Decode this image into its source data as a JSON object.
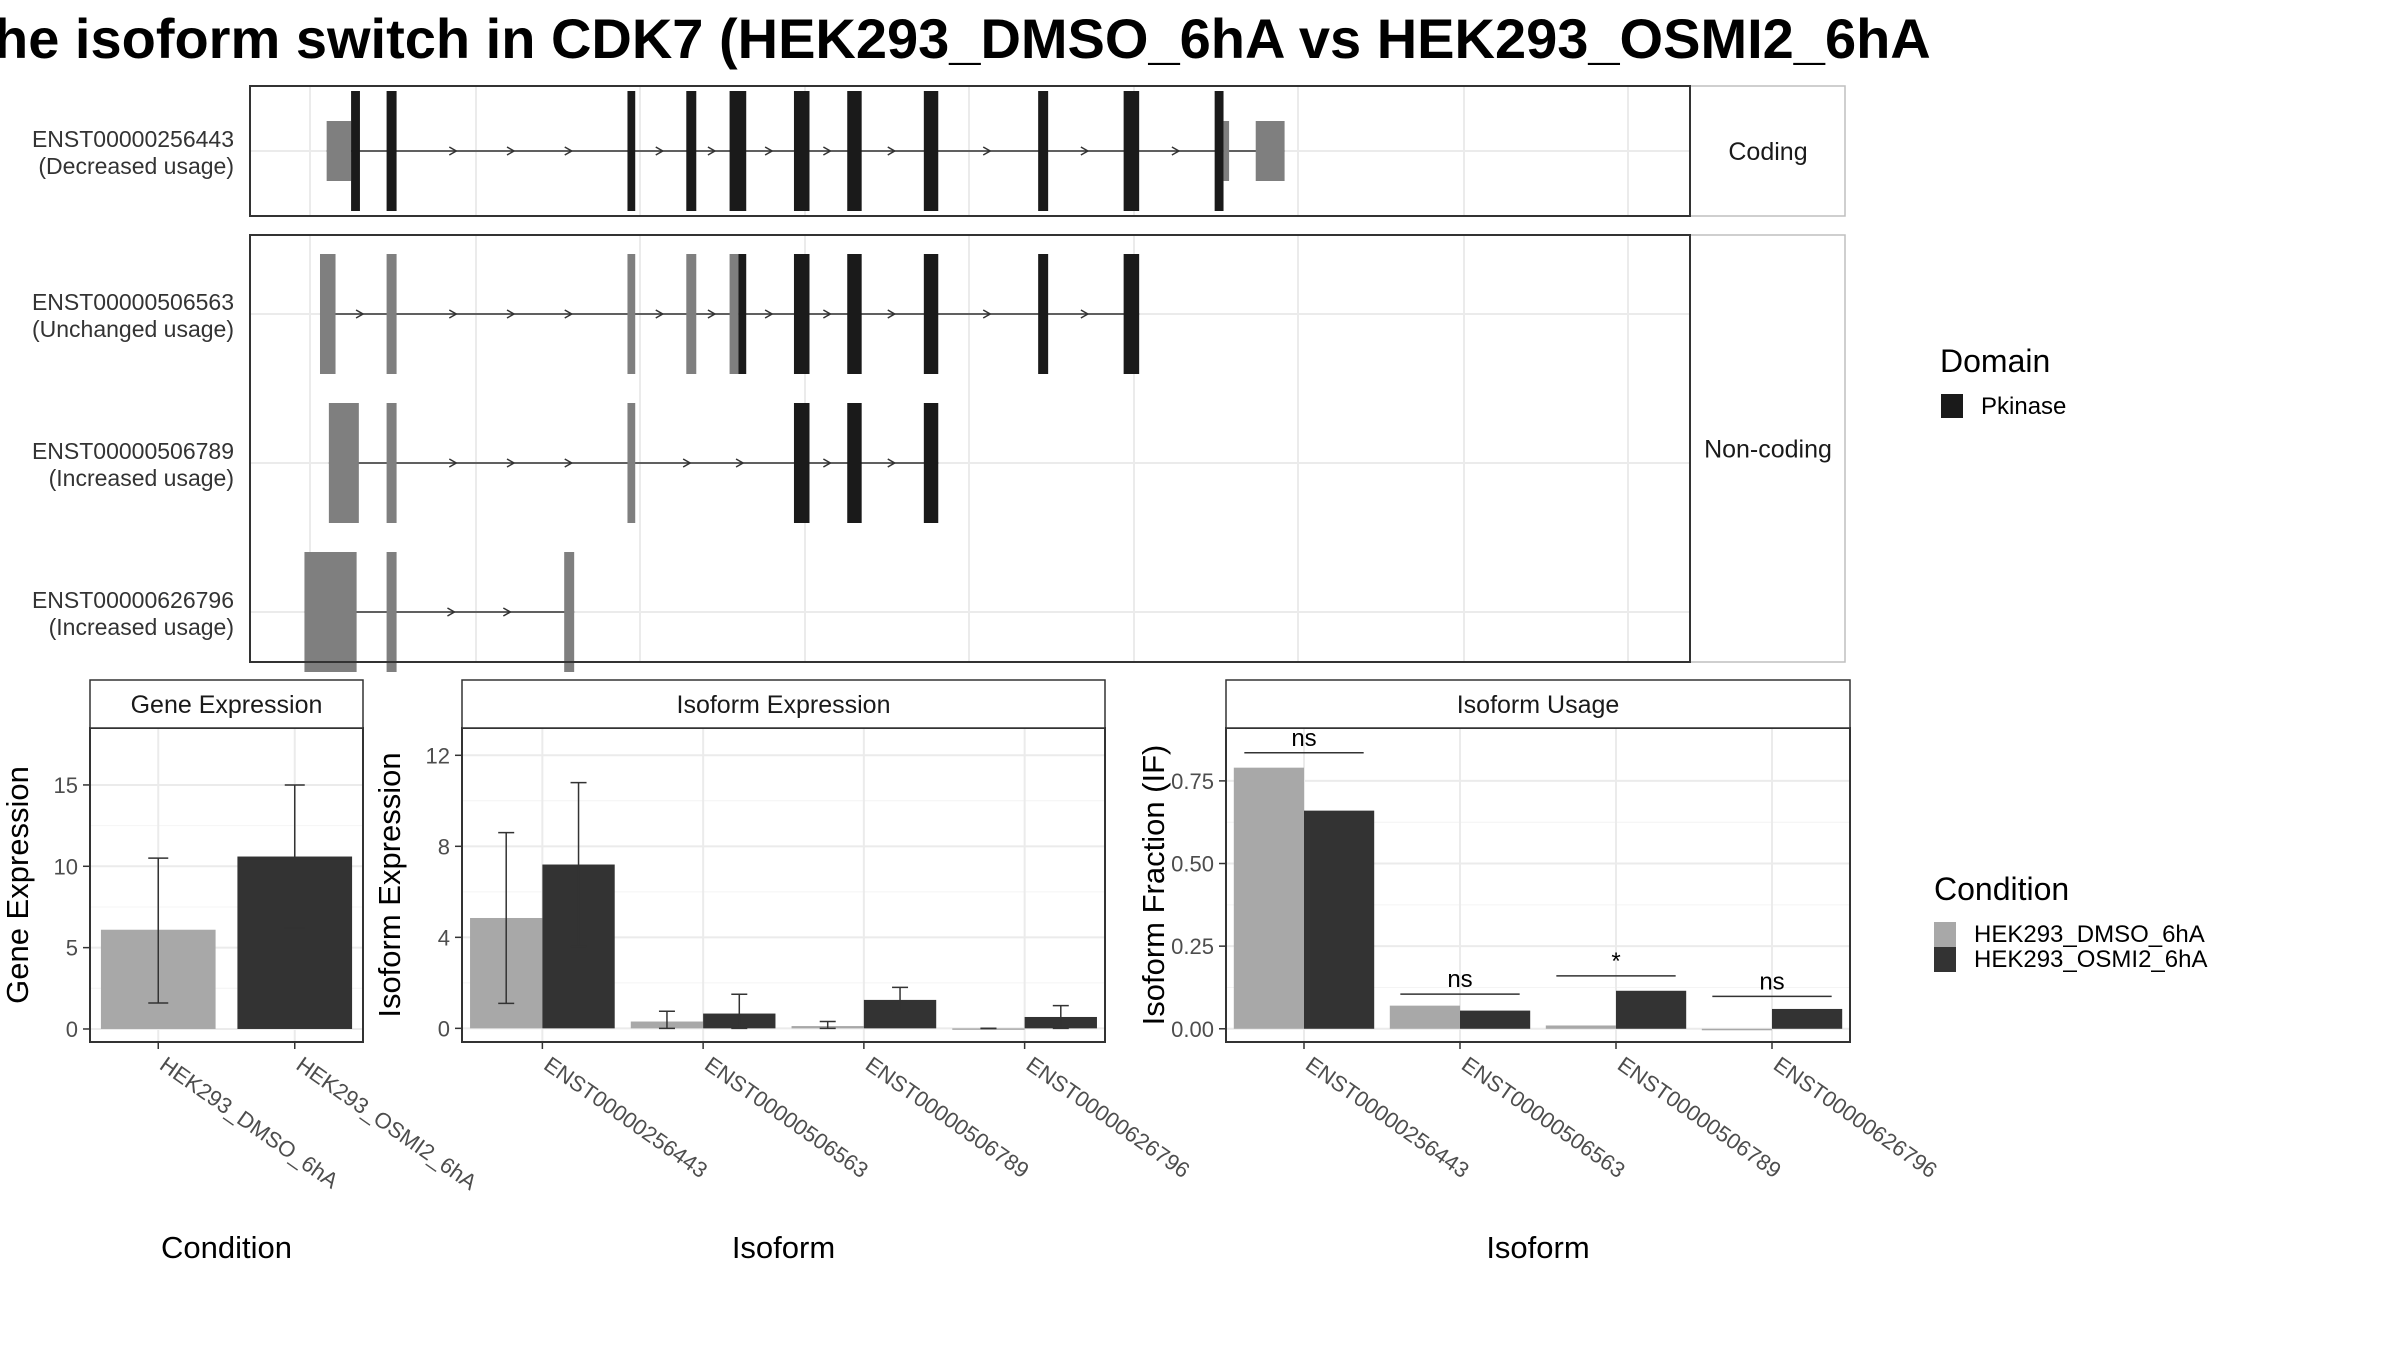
{
  "title": "he isoform switch in CDK7 (HEK293_DMSO_6hA vs HEK293_OSMI2_6hA",
  "colors": {
    "domain_pkinase": "#1a1a1a",
    "exon_other": "#7f7f7f",
    "cond_dmso": "#a8a8a8",
    "cond_osmi2": "#333333"
  },
  "chart_data": [
    {
      "type": "gene-structure",
      "facets": [
        "Coding",
        "Non-coding"
      ],
      "transcripts": [
        {
          "id": "ENST00000256443",
          "label_line1": "ENST00000256443",
          "label_line2": "(Decreased usage)",
          "facet": "Coding",
          "coding": true,
          "x_range": [
            0,
            1000
          ],
          "exons": [
            {
              "x0": 15,
              "x1": 37,
              "kind": "utr"
            },
            {
              "x0": 37,
              "x1": 45,
              "kind": "cds"
            },
            {
              "x0": 69,
              "x1": 78,
              "kind": "domain"
            },
            {
              "x0": 286,
              "x1": 293,
              "kind": "domain"
            },
            {
              "x0": 339,
              "x1": 348,
              "kind": "domain"
            },
            {
              "x0": 378,
              "x1": 393,
              "kind": "domain"
            },
            {
              "x0": 436,
              "x1": 450,
              "kind": "domain"
            },
            {
              "x0": 484,
              "x1": 497,
              "kind": "domain"
            },
            {
              "x0": 553,
              "x1": 566,
              "kind": "domain"
            },
            {
              "x0": 656,
              "x1": 665,
              "kind": "domain"
            },
            {
              "x0": 733,
              "x1": 747,
              "kind": "domain"
            },
            {
              "x0": 815,
              "x1": 823,
              "kind": "cds"
            },
            {
              "x0": 823,
              "x1": 828,
              "kind": "utr"
            },
            {
              "x0": 852,
              "x1": 878,
              "kind": "utr"
            }
          ]
        },
        {
          "id": "ENST00000506563",
          "label_line1": "ENST00000506563",
          "label_line2": "(Unchanged usage)",
          "facet": "Non-coding",
          "coding": false,
          "exons": [
            {
              "x0": 9,
              "x1": 23,
              "kind": "utr"
            },
            {
              "x0": 69,
              "x1": 78,
              "kind": "utr"
            },
            {
              "x0": 286,
              "x1": 293,
              "kind": "utr"
            },
            {
              "x0": 339,
              "x1": 348,
              "kind": "utr"
            },
            {
              "x0": 378,
              "x1": 386,
              "kind": "utr"
            },
            {
              "x0": 386,
              "x1": 393,
              "kind": "domain"
            },
            {
              "x0": 436,
              "x1": 450,
              "kind": "domain"
            },
            {
              "x0": 484,
              "x1": 497,
              "kind": "domain"
            },
            {
              "x0": 553,
              "x1": 566,
              "kind": "domain"
            },
            {
              "x0": 656,
              "x1": 665,
              "kind": "domain"
            },
            {
              "x0": 733,
              "x1": 747,
              "kind": "domain"
            }
          ]
        },
        {
          "id": "ENST00000506789",
          "label_line1": "ENST00000506789",
          "label_line2": "(Increased usage)",
          "facet": "Non-coding",
          "coding": false,
          "exons": [
            {
              "x0": 17,
              "x1": 44,
              "kind": "utr"
            },
            {
              "x0": 69,
              "x1": 78,
              "kind": "utr"
            },
            {
              "x0": 286,
              "x1": 293,
              "kind": "utr"
            },
            {
              "x0": 436,
              "x1": 450,
              "kind": "domain"
            },
            {
              "x0": 484,
              "x1": 497,
              "kind": "domain"
            },
            {
              "x0": 553,
              "x1": 566,
              "kind": "domain"
            }
          ]
        },
        {
          "id": "ENST00000626796",
          "label_line1": "ENST00000626796",
          "label_line2": "(Increased usage)",
          "facet": "Non-coding",
          "coding": false,
          "exons": [
            {
              "x0": -5,
              "x1": 42,
              "kind": "utr"
            },
            {
              "x0": 69,
              "x1": 78,
              "kind": "utr"
            },
            {
              "x0": 229,
              "x1": 238,
              "kind": "utr"
            }
          ]
        }
      ],
      "legend": {
        "title": "Domain",
        "items": [
          {
            "name": "Pkinase",
            "color_key": "domain_pkinase"
          }
        ]
      }
    },
    {
      "type": "bar",
      "panel_title": "Gene Expression",
      "xlabel": "Condition",
      "ylabel": "Gene Expression",
      "categories": [
        "HEK293_DMSO_6hA",
        "HEK293_OSMI2_6hA"
      ],
      "values": [
        6.1,
        10.6
      ],
      "errors_low": [
        1.6,
        6.2
      ],
      "errors_high": [
        10.5,
        15.0
      ],
      "ylim": [
        -0.8,
        18.5
      ],
      "yticks": [
        0,
        5,
        10,
        15
      ],
      "grid": true
    },
    {
      "type": "bar",
      "panel_title": "Isoform Expression",
      "xlabel": "Isoform",
      "ylabel": "Isoform Expression",
      "categories": [
        "ENST00000256443",
        "ENST00000506563",
        "ENST00000506789",
        "ENST00000626796"
      ],
      "series": [
        {
          "name": "HEK293_DMSO_6hA",
          "values": [
            4.85,
            0.3,
            0.1,
            0.0
          ],
          "err_low": [
            1.1,
            0.0,
            0.0,
            0.0
          ],
          "err_high": [
            8.6,
            0.75,
            0.3,
            0.0
          ]
        },
        {
          "name": "HEK293_OSMI2_6hA",
          "values": [
            7.2,
            0.65,
            1.25,
            0.5
          ],
          "err_low": [
            3.6,
            0.0,
            0.75,
            0.0
          ],
          "err_high": [
            10.8,
            1.5,
            1.8,
            1.0
          ]
        }
      ],
      "ylim": [
        -0.6,
        13.2
      ],
      "yticks": [
        0,
        4,
        8,
        12
      ],
      "grid": true
    },
    {
      "type": "bar",
      "panel_title": "Isoform Usage",
      "xlabel": "Isoform",
      "ylabel": "Isoform Fraction (IF)",
      "categories": [
        "ENST00000256443",
        "ENST00000506563",
        "ENST00000506789",
        "ENST00000626796"
      ],
      "series": [
        {
          "name": "HEK293_DMSO_6hA",
          "values": [
            0.79,
            0.07,
            0.01,
            0.0
          ]
        },
        {
          "name": "HEK293_OSMI2_6hA",
          "values": [
            0.66,
            0.055,
            0.115,
            0.06
          ]
        }
      ],
      "significance": [
        "ns",
        "ns",
        "*",
        "ns"
      ],
      "sig_levels": [
        0.835,
        0.105,
        0.16,
        0.098
      ],
      "ylim": [
        -0.04,
        0.91
      ],
      "yticks": [
        0,
        0.25,
        0.5,
        0.75
      ],
      "ytick_labels": [
        "0.00",
        "0.25",
        "0.50",
        "0.75"
      ],
      "grid": true
    }
  ],
  "condition_legend": {
    "title": "Condition",
    "items": [
      {
        "name": "HEK293_DMSO_6hA",
        "color_key": "cond_dmso"
      },
      {
        "name": "HEK293_OSMI2_6hA",
        "color_key": "cond_osmi2"
      }
    ]
  }
}
